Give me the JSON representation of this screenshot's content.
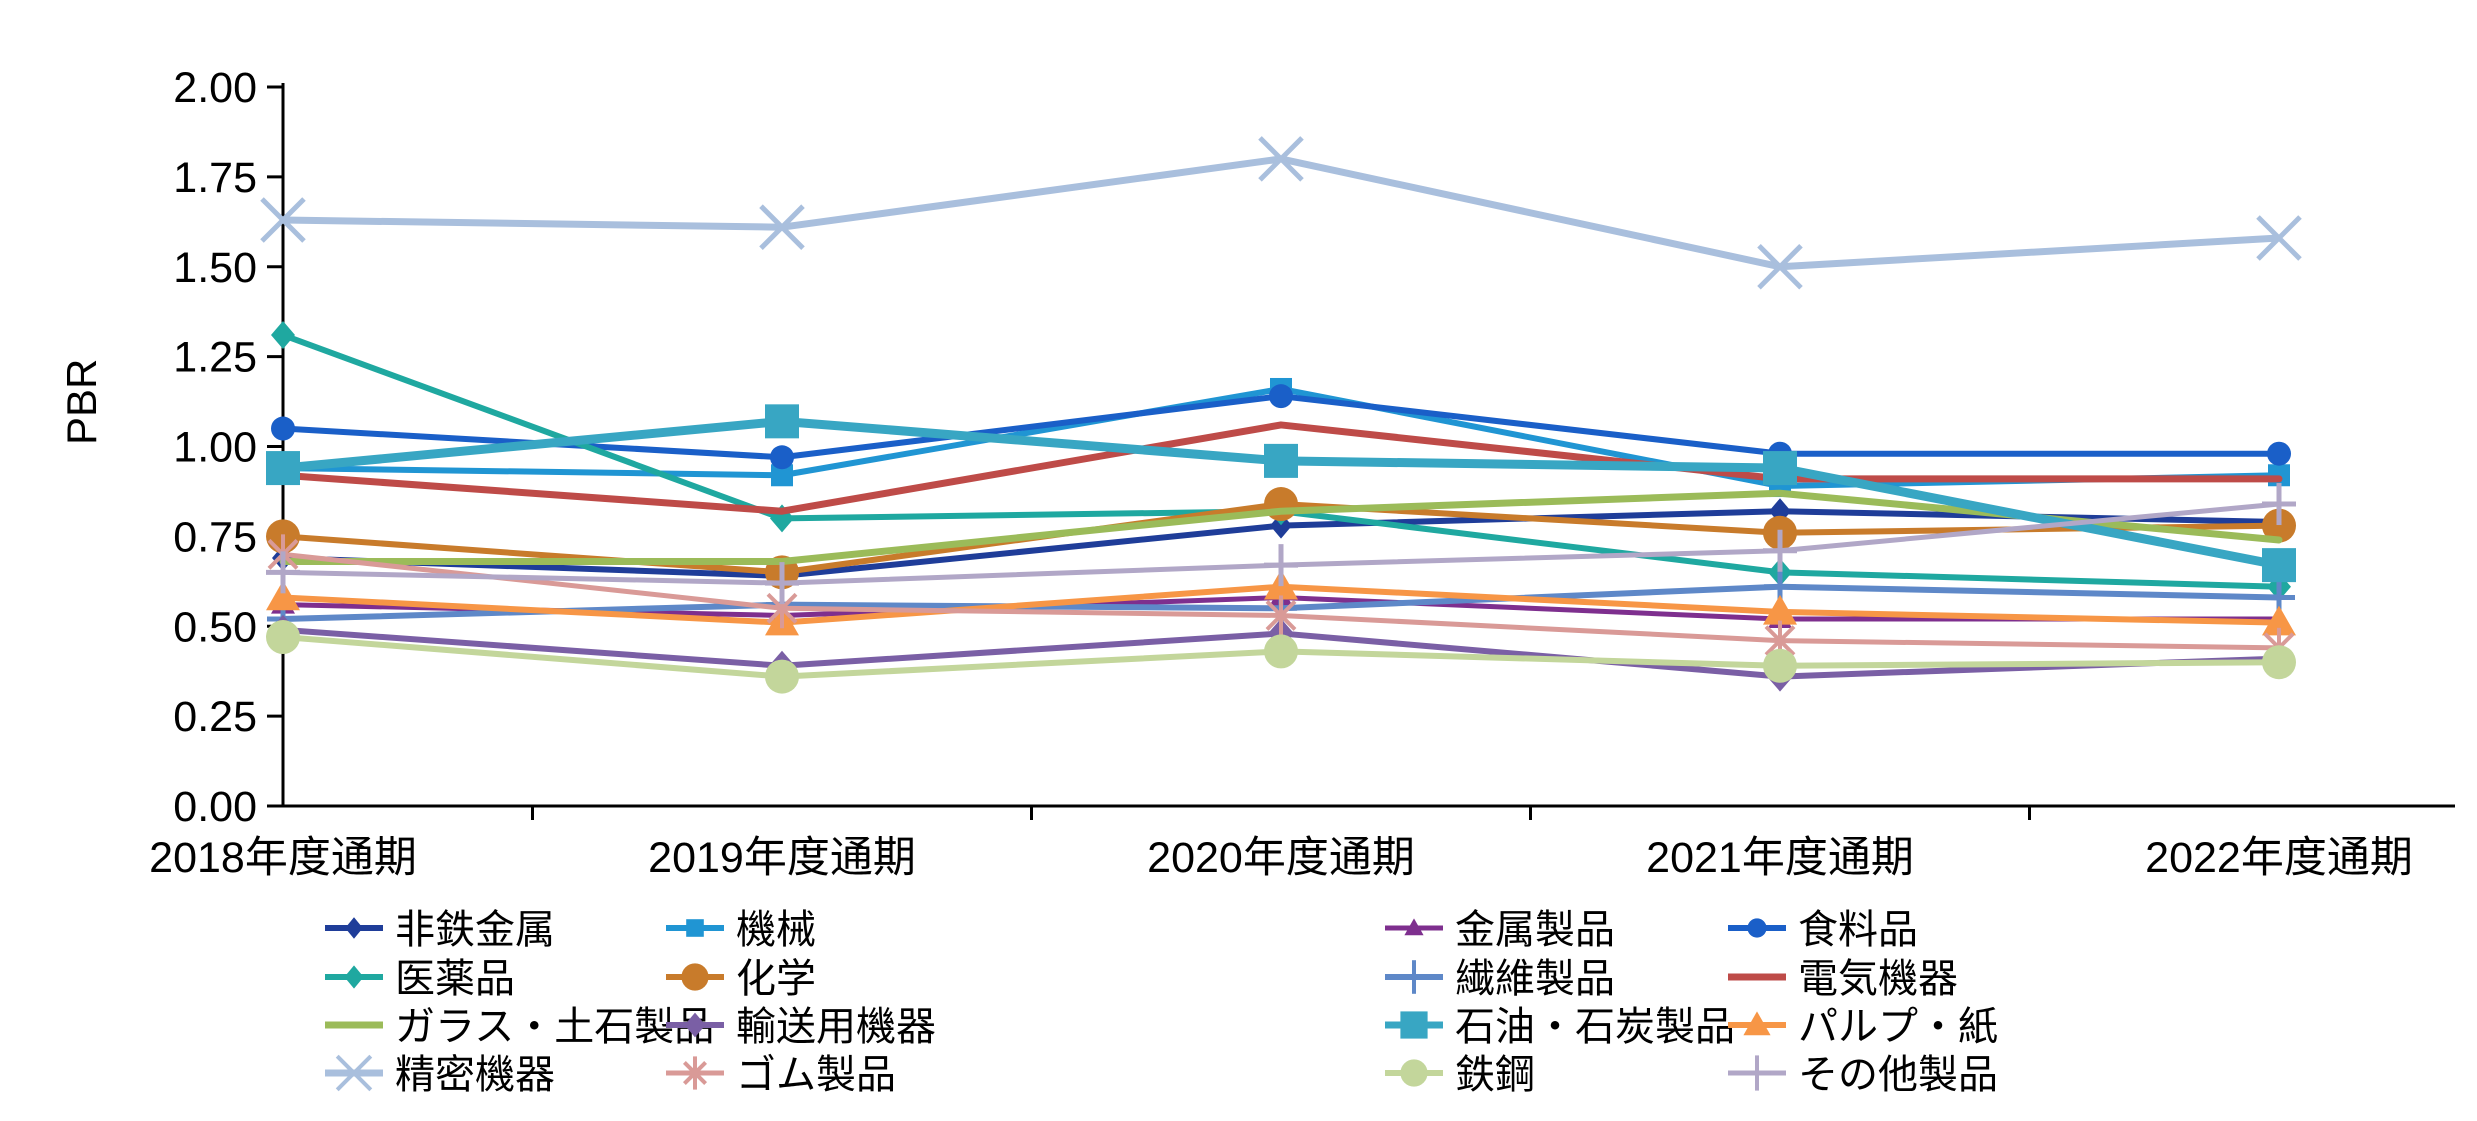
{
  "chart_data": {
    "type": "line",
    "title": "",
    "ylabel": "PBR",
    "ylim": [
      0,
      2
    ],
    "ytick_step": 0.25,
    "grid": false,
    "legend_position": "bottom",
    "legend_grid": {
      "rows": 4,
      "cols": 4,
      "order": "row-major"
    },
    "categories": [
      "2018年度通期",
      "2019年度通期",
      "2020年度通期",
      "2021年度通期",
      "2022年度通期"
    ],
    "series": [
      {
        "name": "非鉄金属",
        "color": "#1F3D99",
        "marker": "diamond",
        "msize": 11,
        "lw": 6,
        "values": [
          0.69,
          0.64,
          0.78,
          0.82,
          0.79
        ]
      },
      {
        "name": "機械",
        "color": "#2095D3",
        "marker": "square",
        "msize": 11,
        "lw": 6,
        "values": [
          0.94,
          0.92,
          1.16,
          0.89,
          0.92
        ]
      },
      {
        "name": "金属製品",
        "color": "#7E2F8E",
        "marker": "triangle",
        "msize": 12,
        "lw": 5,
        "values": [
          0.56,
          0.53,
          0.58,
          0.52,
          0.52
        ]
      },
      {
        "name": "食料品",
        "color": "#1A5FC8",
        "marker": "circle",
        "msize": 12,
        "lw": 6,
        "values": [
          1.05,
          0.97,
          1.14,
          0.98,
          0.98
        ]
      },
      {
        "name": "医薬品",
        "color": "#1FA8A0",
        "marker": "diamond",
        "msize": 12,
        "lw": 6,
        "values": [
          1.31,
          0.8,
          0.82,
          0.65,
          0.61
        ]
      },
      {
        "name": "化学",
        "color": "#C87B2B",
        "marker": "circle",
        "msize": 17,
        "lw": 6,
        "values": [
          0.75,
          0.65,
          0.84,
          0.76,
          0.78
        ]
      },
      {
        "name": "繊維製品",
        "color": "#5E88C8",
        "marker": "plus",
        "msize": 16,
        "lw": 6,
        "values": [
          0.52,
          0.56,
          0.55,
          0.61,
          0.58
        ]
      },
      {
        "name": "電気機器",
        "color": "#BE4B48",
        "marker": "none",
        "msize": 0,
        "lw": 7,
        "values": [
          0.92,
          0.82,
          1.06,
          0.91,
          0.91
        ]
      },
      {
        "name": "ガラス・土石製品",
        "color": "#9BBB59",
        "marker": "none",
        "msize": 0,
        "lw": 7,
        "values": [
          0.68,
          0.68,
          0.82,
          0.87,
          0.74
        ]
      },
      {
        "name": "輸送用機器",
        "color": "#7A5FA5",
        "marker": "diamond",
        "msize": 13,
        "lw": 6,
        "values": [
          0.49,
          0.39,
          0.48,
          0.36,
          0.41
        ]
      },
      {
        "name": "石油・石炭製品",
        "color": "#38A6C3",
        "marker": "square",
        "msize": 17,
        "lw": 9,
        "values": [
          0.94,
          1.07,
          0.96,
          0.94,
          0.67
        ]
      },
      {
        "name": "パルプ・紙",
        "color": "#F79646",
        "marker": "triangle",
        "msize": 17,
        "lw": 6,
        "values": [
          0.58,
          0.51,
          0.61,
          0.54,
          0.51
        ]
      },
      {
        "name": "精密機器",
        "color": "#A9BFDD",
        "marker": "x",
        "msize": 21,
        "lw": 7,
        "values": [
          1.63,
          1.61,
          1.8,
          1.5,
          1.58
        ]
      },
      {
        "name": "ゴム製品",
        "color": "#D99A97",
        "marker": "asterisk",
        "msize": 17,
        "lw": 5,
        "values": [
          0.7,
          0.55,
          0.53,
          0.46,
          0.44
        ]
      },
      {
        "name": "鉄鋼",
        "color": "#C3D69B",
        "marker": "circle",
        "msize": 17,
        "lw": 6,
        "values": [
          0.47,
          0.36,
          0.43,
          0.39,
          0.4
        ]
      },
      {
        "name": "その他製品",
        "color": "#B1A7C7",
        "marker": "plus",
        "msize": 17,
        "lw": 5,
        "values": [
          0.65,
          0.62,
          0.67,
          0.71,
          0.84
        ]
      }
    ]
  }
}
